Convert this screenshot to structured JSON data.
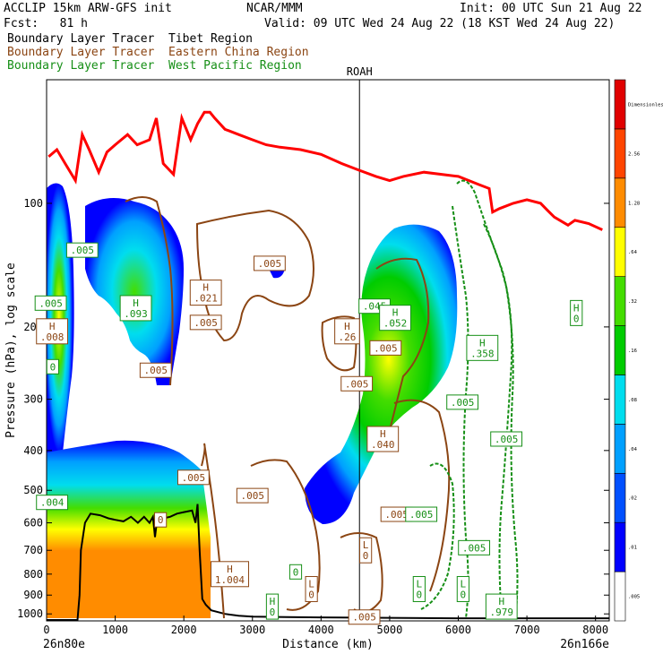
{
  "header": {
    "model": "ACCLIP 15km ARW-GFS init",
    "fcst": "Fcst:   81 h",
    "org": "NCAR/MMM",
    "init": "Init: 00 UTC Sun 21 Aug 22",
    "valid": "Valid: 09 UTC Wed 24 Aug 22 (18 KST Wed 24 Aug 22)"
  },
  "legend": [
    {
      "text": "Boundary Layer Tracer  Tibet Region",
      "color": "#000000"
    },
    {
      "text": "Boundary Layer Tracer  Eastern China Region",
      "color": "#8b4513"
    },
    {
      "text": "Boundary Layer Tracer  West Pacific Region",
      "color": "#168f16"
    }
  ],
  "chart_data": {
    "type": "cross-section",
    "xlabel": "Distance (km)",
    "ylabel": "Pressure (hPa), log scale",
    "y_scale": "log",
    "x_range": [
      0,
      8200
    ],
    "y_range": [
      1040,
      50
    ],
    "x_ticks": [
      0,
      1000,
      2000,
      3000,
      4000,
      5000,
      6000,
      7000,
      8000
    ],
    "y_ticks": [
      100,
      200,
      300,
      400,
      500,
      600,
      700,
      800,
      900,
      1000
    ],
    "x_start_label": "26n80e",
    "x_end_label": "26n166e",
    "station_marker": {
      "label": "ROAH",
      "x": 4560
    },
    "colorbar": {
      "levels": [
        ".005",
        ".01",
        ".02",
        ".04",
        ".08",
        ".16",
        ".32",
        ".64",
        "1.28",
        "2.56",
        "Dimensionless"
      ],
      "colors": [
        "#ffffff",
        "#0000ff",
        "#0050ff",
        "#00a0ff",
        "#00ddee",
        "#00cc00",
        "#44dd00",
        "#ffff00",
        "#ff8c00",
        "#ff4500",
        "#e00000"
      ]
    },
    "tropopause_line": {
      "color": "#ff0000",
      "points": [
        [
          30,
          77
        ],
        [
          150,
          74
        ],
        [
          270,
          80
        ],
        [
          420,
          88
        ],
        [
          520,
          68
        ],
        [
          620,
          74
        ],
        [
          760,
          84
        ],
        [
          880,
          75
        ],
        [
          1000,
          72
        ],
        [
          1180,
          68
        ],
        [
          1320,
          72
        ],
        [
          1500,
          70
        ],
        [
          1600,
          62
        ],
        [
          1700,
          80
        ],
        [
          1850,
          85
        ],
        [
          1970,
          62
        ],
        [
          2100,
          70
        ],
        [
          2200,
          64
        ],
        [
          2300,
          60
        ],
        [
          2380,
          60
        ],
        [
          2450,
          62
        ],
        [
          2600,
          66
        ],
        [
          2800,
          68
        ],
        [
          3000,
          70
        ],
        [
          3200,
          72
        ],
        [
          3400,
          73
        ],
        [
          3700,
          74
        ],
        [
          4000,
          76
        ],
        [
          4300,
          80
        ],
        [
          4550,
          83
        ],
        [
          4800,
          86
        ],
        [
          5000,
          88
        ],
        [
          5200,
          86
        ],
        [
          5500,
          84
        ],
        [
          6000,
          86
        ],
        [
          6300,
          90
        ],
        [
          6450,
          92
        ],
        [
          6500,
          105
        ],
        [
          6600,
          103
        ],
        [
          6800,
          100
        ],
        [
          7000,
          98
        ],
        [
          7200,
          100
        ],
        [
          7300,
          104
        ],
        [
          7400,
          108
        ],
        [
          7600,
          113
        ],
        [
          7700,
          110
        ],
        [
          7900,
          112
        ],
        [
          8100,
          116
        ]
      ]
    },
    "terrain_line": {
      "color": "#000000",
      "points": [
        [
          0,
          1035
        ],
        [
          450,
          1035
        ],
        [
          480,
          900
        ],
        [
          500,
          700
        ],
        [
          560,
          600
        ],
        [
          640,
          570
        ],
        [
          780,
          575
        ],
        [
          900,
          585
        ],
        [
          1000,
          590
        ],
        [
          1120,
          595
        ],
        [
          1230,
          580
        ],
        [
          1330,
          600
        ],
        [
          1420,
          580
        ],
        [
          1500,
          600
        ],
        [
          1550,
          580
        ],
        [
          1580,
          650
        ],
        [
          1610,
          590
        ],
        [
          1700,
          585
        ],
        [
          1800,
          580
        ],
        [
          1900,
          570
        ],
        [
          2000,
          565
        ],
        [
          2120,
          560
        ],
        [
          2170,
          600
        ],
        [
          2200,
          540
        ],
        [
          2230,
          700
        ],
        [
          2270,
          920
        ],
        [
          2320,
          950
        ],
        [
          2400,
          980
        ],
        [
          2600,
          1000
        ],
        [
          2800,
          1010
        ],
        [
          3000,
          1015
        ],
        [
          3500,
          1018
        ],
        [
          4000,
          1020
        ],
        [
          6000,
          1025
        ],
        [
          8200,
          1025
        ]
      ]
    },
    "labels": [
      {
        "text": ".005",
        "x": 520,
        "p": 130,
        "color": "#168f16"
      },
      {
        "text": ".005",
        "x": 60,
        "p": 175,
        "color": "#168f16"
      },
      {
        "text": "H\n.093",
        "x": 1300,
        "p": 180,
        "color": "#168f16"
      },
      {
        "text": "H\n.021",
        "x": 2320,
        "p": 165,
        "color": "#8b4513"
      },
      {
        "text": ".005",
        "x": 2320,
        "p": 195,
        "color": "#8b4513"
      },
      {
        "text": ".005",
        "x": 3250,
        "p": 140,
        "color": "#8b4513"
      },
      {
        "text": "H\n.008",
        "x": 80,
        "p": 205,
        "color": "#8b4513"
      },
      {
        "text": ".005",
        "x": 1590,
        "p": 255,
        "color": "#8b4513"
      },
      {
        "text": "0",
        "x": 90,
        "p": 250,
        "color": "#168f16"
      },
      {
        "text": "H\n.26",
        "x": 4380,
        "p": 205,
        "color": "#8b4513"
      },
      {
        "text": ".045",
        "x": 4780,
        "p": 178,
        "color": "#168f16"
      },
      {
        "text": "H\n.052",
        "x": 5080,
        "p": 190,
        "color": "#168f16"
      },
      {
        "text": ".005",
        "x": 4940,
        "p": 225,
        "color": "#8b4513"
      },
      {
        "text": ".005",
        "x": 4520,
        "p": 275,
        "color": "#8b4513"
      },
      {
        "text": "H\n.358",
        "x": 6350,
        "p": 225,
        "color": "#168f16"
      },
      {
        "text": "H\n0",
        "x": 7720,
        "p": 185,
        "color": "#168f16"
      },
      {
        "text": ".005",
        "x": 6060,
        "p": 305,
        "color": "#168f16"
      },
      {
        "text": ".005",
        "x": 6700,
        "p": 375,
        "color": "#168f16"
      },
      {
        "text": "H\n.040",
        "x": 4900,
        "p": 375,
        "color": "#8b4513"
      },
      {
        "text": ".005",
        "x": 2140,
        "p": 465,
        "color": "#8b4513"
      },
      {
        "text": ".004",
        "x": 80,
        "p": 535,
        "color": "#168f16"
      },
      {
        "text": "0",
        "x": 1660,
        "p": 590,
        "color": "#8b4513"
      },
      {
        "text": ".005",
        "x": 3000,
        "p": 515,
        "color": "#8b4513"
      },
      {
        "text": ".005",
        "x": 5100,
        "p": 572,
        "color": "#8b4513"
      },
      {
        "text": ".005",
        "x": 5460,
        "p": 572,
        "color": "#168f16"
      },
      {
        "text": ".005",
        "x": 6230,
        "p": 690,
        "color": "#168f16"
      },
      {
        "text": "L\n0",
        "x": 4650,
        "p": 700,
        "color": "#8b4513"
      },
      {
        "text": "H\n1.004",
        "x": 2670,
        "p": 800,
        "color": "#8b4513"
      },
      {
        "text": "0",
        "x": 3630,
        "p": 790,
        "color": "#168f16"
      },
      {
        "text": "L\n0",
        "x": 3860,
        "p": 870,
        "color": "#8b4513"
      },
      {
        "text": "L\n0",
        "x": 5430,
        "p": 870,
        "color": "#168f16"
      },
      {
        "text": "L\n0",
        "x": 6070,
        "p": 870,
        "color": "#168f16"
      },
      {
        "text": "H\n0",
        "x": 3290,
        "p": 960,
        "color": "#168f16"
      },
      {
        "text": "H\n.979",
        "x": 6630,
        "p": 960,
        "color": "#168f16"
      },
      {
        "text": ".005",
        "x": 4630,
        "p": 1018,
        "color": "#8b4513"
      }
    ]
  }
}
